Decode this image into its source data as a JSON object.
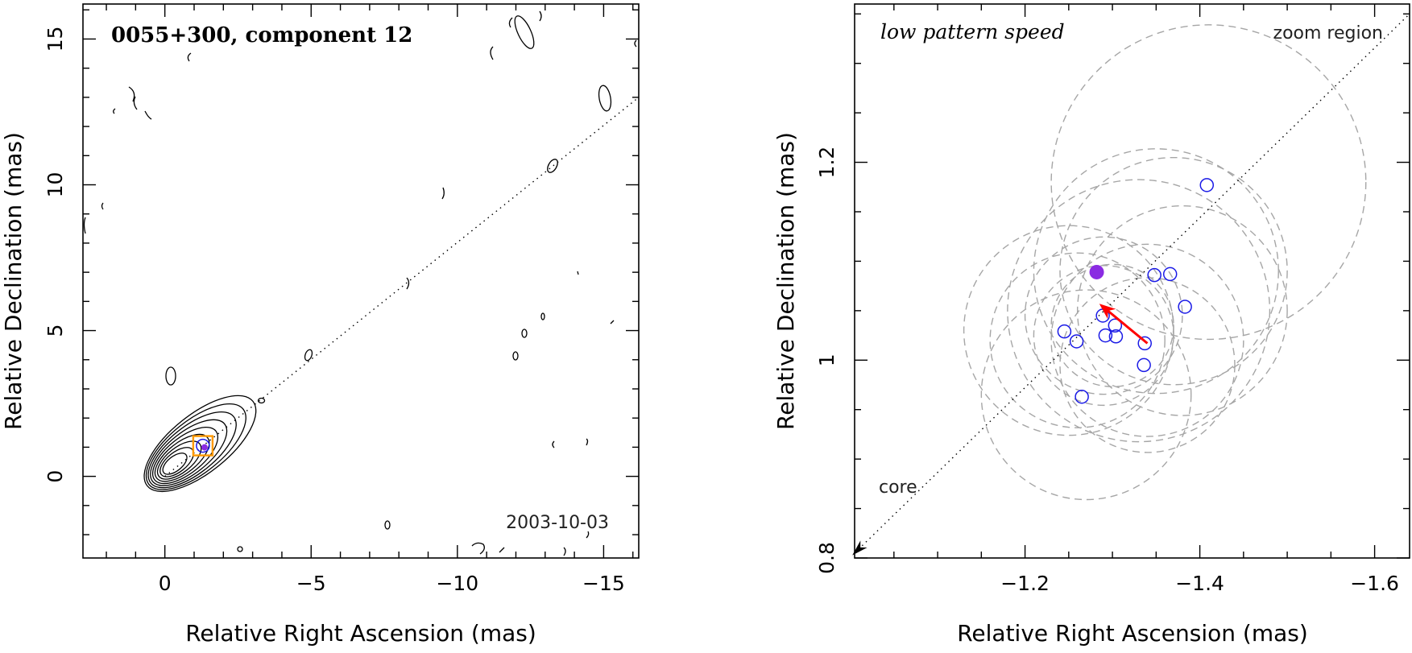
{
  "chart_data": [
    {
      "type": "contour",
      "title": "0055+300, component 12",
      "epoch": "2003-10-03",
      "xlabel": "Relative Right Ascension (mas)",
      "ylabel": "Relative Declination (mas)",
      "xlim": [
        2.8,
        -16.2
      ],
      "ylim": [
        -2.8,
        16.2
      ],
      "xticks": [
        0,
        -5,
        -10,
        -15
      ],
      "yticks": [
        0,
        5,
        10,
        15
      ],
      "xtick_labels": [
        "0",
        "−5",
        "−10",
        "−15"
      ],
      "ytick_labels": [
        "0",
        "5",
        "10",
        "15"
      ],
      "jet_axis": {
        "from": [
          0,
          0
        ],
        "to": [
          -16.2,
          13.0
        ]
      },
      "component": {
        "x": -1.3,
        "y": 1.05
      },
      "contour_peak": {
        "x": -0.3,
        "y": 0.4
      },
      "contour_levels": 9
    },
    {
      "type": "scatter",
      "title": "low pattern speed",
      "corner_label": "zoom region",
      "core_label": "core",
      "xlabel": "Relative Right Ascension (mas)",
      "ylabel": "Relative Declination (mas)",
      "xlim": [
        -1.005,
        -1.64
      ],
      "ylim": [
        0.8,
        1.36
      ],
      "xticks": [
        -1.2,
        -1.4,
        -1.6
      ],
      "yticks": [
        0.8,
        1.0,
        1.2
      ],
      "xtick_labels": [
        "−1.2",
        "−1.4",
        "−1.6"
      ],
      "ytick_labels": [
        "0.8",
        "1",
        "1.2"
      ],
      "series": [
        {
          "name": "component positions",
          "marker": "open-circle",
          "color": "#1a1ae6",
          "x": [
            -1.408,
            -1.348,
            -1.366,
            -1.383,
            -1.245,
            -1.259,
            -1.289,
            -1.292,
            -1.303,
            -1.304,
            -1.337,
            -1.336,
            -1.265
          ],
          "y": [
            1.177,
            1.086,
            1.087,
            1.054,
            1.029,
            1.019,
            1.045,
            1.025,
            1.035,
            1.024,
            1.017,
            0.995,
            0.963
          ]
        },
        {
          "name": "mean position",
          "marker": "filled-circle",
          "color": "#8a2be2",
          "x": [
            -1.282
          ],
          "y": [
            1.089
          ]
        }
      ],
      "uncertainty_circles": [
        {
          "x": -1.41,
          "y": 1.18,
          "r": 0.18
        },
        {
          "x": -1.35,
          "y": 1.09,
          "r": 0.14
        },
        {
          "x": -1.37,
          "y": 1.09,
          "r": 0.13
        },
        {
          "x": -1.38,
          "y": 1.05,
          "r": 0.12
        },
        {
          "x": -1.25,
          "y": 1.03,
          "r": 0.12
        },
        {
          "x": -1.26,
          "y": 1.02,
          "r": 0.1
        },
        {
          "x": -1.29,
          "y": 1.045,
          "r": 0.09
        },
        {
          "x": -1.29,
          "y": 1.025,
          "r": 0.08
        },
        {
          "x": -1.3,
          "y": 1.035,
          "r": 0.07
        },
        {
          "x": -1.34,
          "y": 1.02,
          "r": 0.11
        },
        {
          "x": -1.34,
          "y": 0.995,
          "r": 0.1
        },
        {
          "x": -1.27,
          "y": 0.965,
          "r": 0.12
        },
        {
          "x": -1.33,
          "y": 1.05,
          "r": 0.15
        }
      ],
      "motion_arrow": {
        "from": {
          "x": -1.34,
          "y": 1.017
        },
        "to": {
          "x": -1.285,
          "y": 1.057
        },
        "color": "#ff0000"
      },
      "jet_axis": {
        "from": [
          -1.005,
          0.805
        ],
        "to": [
          -1.64,
          1.35
        ]
      }
    }
  ]
}
